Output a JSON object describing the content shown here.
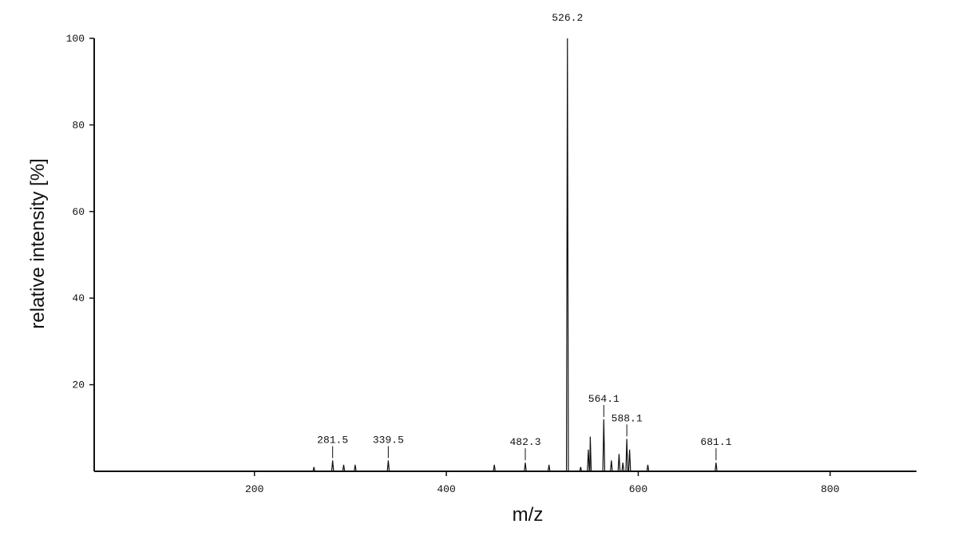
{
  "chart_data": {
    "type": "line",
    "x_label": "m/z",
    "y_label": "relative intensity [%]",
    "xlim": [
      33,
      890
    ],
    "ylim": [
      0,
      100
    ],
    "xticks": [
      200,
      400,
      600,
      800
    ],
    "yticks": [
      20,
      40,
      60,
      80,
      100
    ],
    "color": "#111111",
    "x": [
      33,
      261,
      262,
      263,
      280.5,
      281.5,
      282.5,
      292,
      293,
      294,
      304,
      305,
      306,
      338.5,
      339.5,
      340.5,
      449,
      450,
      451,
      481.3,
      482.3,
      483.3,
      506,
      507,
      508,
      525.2,
      526.2,
      527.2,
      539,
      540,
      541,
      547,
      548,
      549,
      549.5,
      550,
      551,
      563.1,
      564.1,
      565.1,
      571,
      572,
      573,
      579,
      580,
      581,
      583,
      584,
      585,
      587.1,
      588.1,
      589.1,
      590,
      591,
      592,
      609,
      610,
      611,
      680.1,
      681.1,
      682.1,
      890
    ],
    "values": [
      0,
      0,
      1,
      0,
      0,
      2.5,
      0,
      0,
      1.5,
      0,
      0,
      1.5,
      0,
      0,
      2.5,
      0,
      0,
      1.5,
      0,
      0,
      2,
      0,
      0,
      1.5,
      0,
      0,
      100,
      0,
      0,
      1,
      0,
      0,
      5,
      0,
      0,
      8,
      0,
      0,
      12,
      0,
      0,
      2.5,
      0,
      0,
      4,
      0,
      0,
      2,
      0,
      0,
      7.5,
      0,
      0,
      5,
      0,
      0,
      1.5,
      0,
      0,
      2,
      0,
      0
    ],
    "peak_labels": [
      {
        "x": 281.5,
        "y": 2.5
      },
      {
        "x": 339.5,
        "y": 2.5
      },
      {
        "x": 482.3,
        "y": 2
      },
      {
        "x": 526.2,
        "y": 100
      },
      {
        "x": 564.1,
        "y": 12
      },
      {
        "x": 588.1,
        "y": 7.5
      },
      {
        "x": 681.1,
        "y": 2
      }
    ]
  }
}
